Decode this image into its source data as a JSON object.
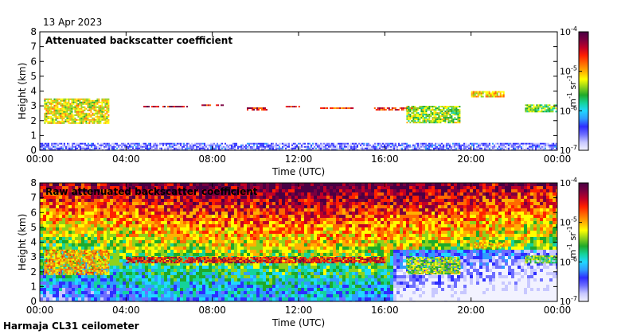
{
  "date_label": "13 Apr 2023",
  "footer_label": "Harmaja CL31 ceilometer",
  "colors": {
    "colormap": [
      "#f2f2ff",
      "#c8c8ff",
      "#6e6eff",
      "#2d2dff",
      "#2f9bff",
      "#20d8ff",
      "#14d39a",
      "#1faa2a",
      "#8fd21b",
      "#ffff00",
      "#ffb000",
      "#ff6a00",
      "#ff2000",
      "#c00027",
      "#7a0040",
      "#4a0044"
    ],
    "background": "#ffffff"
  },
  "chart_data": [
    {
      "type": "heatmap",
      "title": "Attenuated backscatter coefficient",
      "xlabel": "Time (UTC)",
      "ylabel": "Height (km)",
      "xlim": [
        0,
        24
      ],
      "ylim": [
        0,
        8
      ],
      "x_tick_values": [
        0,
        4,
        8,
        12,
        16,
        20,
        24
      ],
      "x_tick_labels": [
        "00:00",
        "04:00",
        "08:00",
        "12:00",
        "16:00",
        "20:00",
        "00:00"
      ],
      "y_tick_values": [
        0,
        1,
        2,
        3,
        4,
        5,
        6,
        7,
        8
      ],
      "y_tick_labels": [
        "0",
        "1",
        "2",
        "3",
        "4",
        "5",
        "6",
        "7",
        "8"
      ],
      "colorbar": {
        "label": "m-1 sr-1",
        "scale": "log",
        "range_exp": [
          -7,
          -4
        ],
        "tick_exponents": [
          -7,
          -6,
          -5,
          -4
        ],
        "tick_labels": [
          "10-7",
          "10-6",
          "10-5",
          "10-4"
        ]
      },
      "features": [
        {
          "name": "surface layer",
          "t_start": 0,
          "t_end": 24,
          "h_bottom": 0,
          "h_top": 0.5,
          "log_level": -6.6
        },
        {
          "name": "low cloud",
          "t_start": 0.2,
          "t_end": 3.2,
          "h_bottom": 1.8,
          "h_top": 3.5,
          "log_level": -5.2
        },
        {
          "name": "cloud base",
          "t_start": 4.8,
          "t_end": 6.8,
          "h_bottom": 2.9,
          "h_top": 3.0,
          "log_level": -4.4
        },
        {
          "name": "cloud base",
          "t_start": 7.5,
          "t_end": 8.5,
          "h_bottom": 3.0,
          "h_top": 3.1,
          "log_level": -4.5
        },
        {
          "name": "cloud base",
          "t_start": 9.6,
          "t_end": 10.5,
          "h_bottom": 2.7,
          "h_top": 2.9,
          "log_level": -4.5
        },
        {
          "name": "cloud base",
          "t_start": 11.4,
          "t_end": 12.0,
          "h_bottom": 2.9,
          "h_top": 3.0,
          "log_level": -4.5
        },
        {
          "name": "cloud base",
          "t_start": 13.0,
          "t_end": 14.5,
          "h_bottom": 2.8,
          "h_top": 2.9,
          "log_level": -4.6
        },
        {
          "name": "cloud base",
          "t_start": 15.5,
          "t_end": 17.5,
          "h_bottom": 2.7,
          "h_top": 2.9,
          "log_level": -4.6
        },
        {
          "name": "aerosol layer",
          "t_start": 17.0,
          "t_end": 19.5,
          "h_bottom": 1.9,
          "h_top": 3.0,
          "log_level": -5.4
        },
        {
          "name": "elevated layer",
          "t_start": 20.0,
          "t_end": 21.5,
          "h_bottom": 3.6,
          "h_top": 4.0,
          "log_level": -5.1
        },
        {
          "name": "elevated layer",
          "t_start": 22.5,
          "t_end": 24,
          "h_bottom": 2.6,
          "h_top": 3.1,
          "log_level": -5.5
        }
      ]
    },
    {
      "type": "heatmap",
      "title": "Raw attenuated backscatter coefficient",
      "xlabel": "Time (UTC)",
      "ylabel": "Height (km)",
      "xlim": [
        0,
        24
      ],
      "ylim": [
        0,
        8
      ],
      "x_tick_values": [
        0,
        4,
        8,
        12,
        16,
        20,
        24
      ],
      "x_tick_labels": [
        "00:00",
        "04:00",
        "08:00",
        "12:00",
        "16:00",
        "20:00",
        "00:00"
      ],
      "y_tick_values": [
        0,
        1,
        2,
        3,
        4,
        5,
        6,
        7,
        8
      ],
      "y_tick_labels": [
        "0",
        "1",
        "2",
        "3",
        "4",
        "5",
        "6",
        "7",
        "8"
      ],
      "colorbar": {
        "label": "m-1 sr-1",
        "scale": "log",
        "range_exp": [
          -7,
          -4
        ],
        "tick_exponents": [
          -7,
          -6,
          -5,
          -4
        ],
        "tick_labels": [
          "10-7",
          "10-6",
          "10-5",
          "10-4"
        ]
      },
      "features": [
        {
          "name": "noisy background",
          "t_start": 0,
          "t_end": 24,
          "h_bottom": 0,
          "h_top": 8,
          "log_level": -5.3
        },
        {
          "name": "low cloud",
          "t_start": 0.2,
          "t_end": 3.2,
          "h_bottom": 1.8,
          "h_top": 3.5,
          "log_level": -5.0
        },
        {
          "name": "cloud base",
          "t_start": 4,
          "t_end": 16,
          "h_bottom": 2.6,
          "h_top": 3.0,
          "log_level": -4.5
        },
        {
          "name": "aerosol layer",
          "t_start": 17.0,
          "t_end": 19.5,
          "h_bottom": 1.9,
          "h_top": 3.0,
          "log_level": -5.4
        },
        {
          "name": "elevated layer",
          "t_start": 20.0,
          "t_end": 21.5,
          "h_bottom": 3.6,
          "h_top": 4.0,
          "log_level": -5.1
        },
        {
          "name": "elevated layer",
          "t_start": 22.5,
          "t_end": 24,
          "h_bottom": 2.6,
          "h_top": 3.1,
          "log_level": -5.5
        }
      ]
    }
  ]
}
